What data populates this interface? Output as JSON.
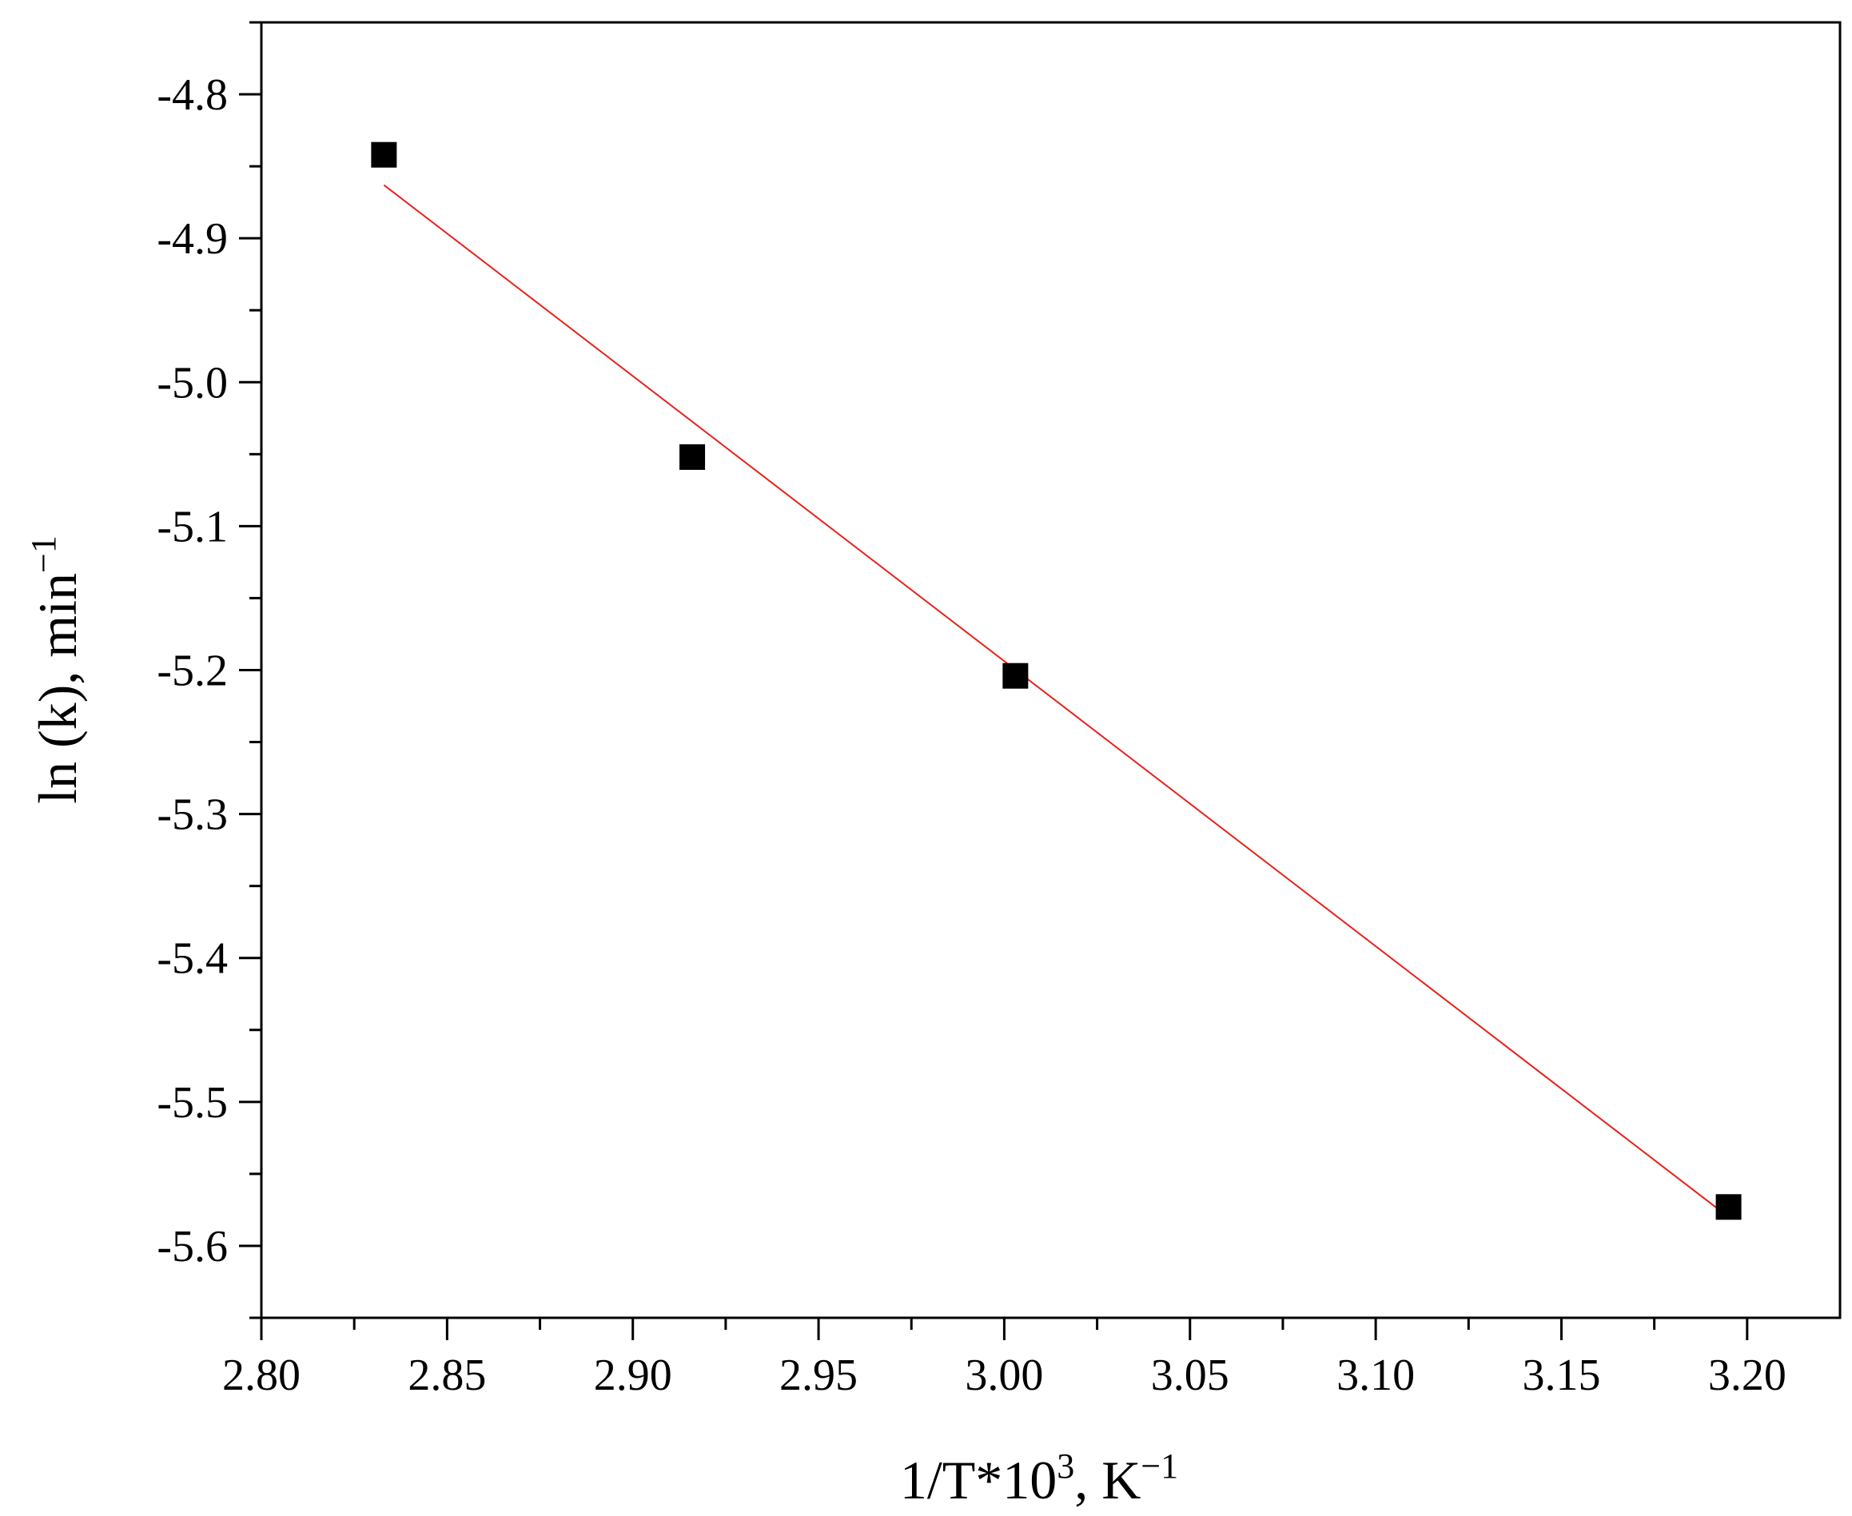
{
  "chart_data": {
    "type": "scatter",
    "title": "",
    "xlabel": {
      "main": "1/T*10",
      "sup": "3",
      "rest": ", K",
      "unit_sup": "−1"
    },
    "ylabel": {
      "main": "ln (k), min",
      "sup": "−1"
    },
    "xlim": [
      2.8,
      3.225
    ],
    "ylim": [
      -5.65,
      -4.75
    ],
    "x_ticks": [
      "2.80",
      "2.85",
      "2.90",
      "2.95",
      "3.00",
      "3.05",
      "3.10",
      "3.15",
      "3.20"
    ],
    "y_ticks": [
      "-4.8",
      "-4.9",
      "-5.0",
      "-5.1",
      "-5.2",
      "-5.3",
      "-5.4",
      "-5.5",
      "-5.6"
    ],
    "grid": false,
    "series": [
      {
        "kind": "points",
        "marker": "square",
        "color": "#000000",
        "x": [
          2.833,
          2.916,
          3.003,
          3.195
        ],
        "y": [
          -4.842,
          -5.052,
          -5.204,
          -5.573
        ]
      },
      {
        "kind": "fit-line",
        "color": "#e8211c",
        "x": [
          2.833,
          3.195
        ],
        "y": [
          -4.863,
          -5.58
        ]
      }
    ]
  }
}
